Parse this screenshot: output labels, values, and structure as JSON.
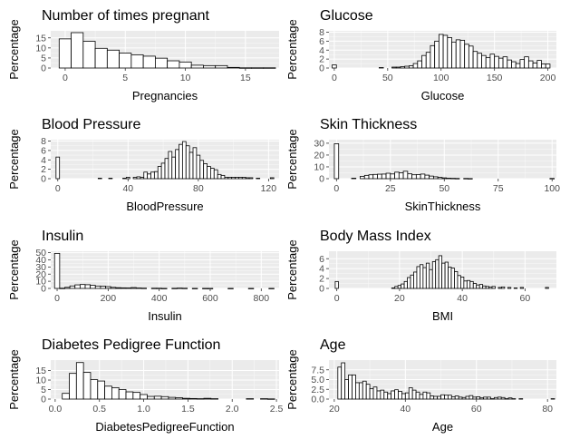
{
  "style": {
    "panel_bg": "#ebebeb",
    "grid_color": "#ffffff",
    "bar_fill": "#ffffff",
    "bar_stroke": "#000000",
    "tick_label_color": "#4d4d4d"
  },
  "chart_data": [
    {
      "type": "bar",
      "title": "Number of times pregnant",
      "xlabel": "Pregnancies",
      "ylabel": "Percentage",
      "xlim": [
        -1.2,
        17.8
      ],
      "ylim": [
        0,
        18.5
      ],
      "xticks": [
        0,
        5,
        10,
        15
      ],
      "xtick_labels": [
        "0",
        "5",
        "10",
        "15"
      ],
      "yticks": [
        0,
        5,
        10,
        15
      ],
      "ytick_labels": [
        "0",
        "5",
        "10",
        "15"
      ],
      "grid": true,
      "bin_width": 1,
      "bins": [
        [
          -0.5,
          14.5
        ],
        [
          0.5,
          17.6
        ],
        [
          1.5,
          13.3
        ],
        [
          2.5,
          9.8
        ],
        [
          3.5,
          8.9
        ],
        [
          4.5,
          7.4
        ],
        [
          5.5,
          6.6
        ],
        [
          6.5,
          5.9
        ],
        [
          7.5,
          4.9
        ],
        [
          8.5,
          3.6
        ],
        [
          9.5,
          3.0
        ],
        [
          10.5,
          1.4
        ],
        [
          11.5,
          1.2
        ],
        [
          12.5,
          1.2
        ],
        [
          13.5,
          0.3
        ],
        [
          14.5,
          0.1
        ],
        [
          15.5,
          0.1
        ],
        [
          16.5,
          0.1
        ]
      ]
    },
    {
      "type": "bar",
      "title": "Glucose",
      "xlabel": "Glucose",
      "ylabel": "Percentage",
      "xlim": [
        -5,
        208
      ],
      "ylim": [
        0,
        8.3
      ],
      "xticks": [
        0,
        50,
        100,
        150,
        200
      ],
      "xtick_labels": [
        "0",
        "50",
        "100",
        "150",
        "200"
      ],
      "yticks": [
        0,
        2,
        4,
        6,
        8
      ],
      "ytick_labels": [
        "0",
        "2",
        "4",
        "6",
        "8"
      ],
      "grid": true,
      "bin_width": 4,
      "bins": [
        [
          -2,
          0.7
        ],
        [
          42,
          0.1
        ],
        [
          54,
          0.2
        ],
        [
          58,
          0.2
        ],
        [
          62,
          0.3
        ],
        [
          66,
          0.4
        ],
        [
          70,
          0.5
        ],
        [
          74,
          1.0
        ],
        [
          78,
          1.6
        ],
        [
          82,
          2.8
        ],
        [
          86,
          3.5
        ],
        [
          90,
          5.0
        ],
        [
          94,
          6.0
        ],
        [
          98,
          7.5
        ],
        [
          102,
          7.3
        ],
        [
          106,
          6.8
        ],
        [
          110,
          5.8
        ],
        [
          114,
          6.3
        ],
        [
          118,
          6.2
        ],
        [
          122,
          5.3
        ],
        [
          126,
          4.9
        ],
        [
          130,
          3.7
        ],
        [
          134,
          3.3
        ],
        [
          138,
          2.8
        ],
        [
          142,
          2.3
        ],
        [
          146,
          3.1
        ],
        [
          150,
          2.6
        ],
        [
          154,
          2.2
        ],
        [
          158,
          2.5
        ],
        [
          162,
          1.8
        ],
        [
          166,
          1.4
        ],
        [
          170,
          1.0
        ],
        [
          174,
          1.9
        ],
        [
          178,
          2.5
        ],
        [
          182,
          1.6
        ],
        [
          186,
          1.1
        ],
        [
          190,
          1.7
        ],
        [
          194,
          0.9
        ],
        [
          198,
          0.9
        ]
      ]
    },
    {
      "type": "bar",
      "title": "Blood Pressure",
      "xlabel": "BloodPressure",
      "ylabel": "Percentage",
      "xlim": [
        -4,
        126
      ],
      "ylim": [
        0,
        8.3
      ],
      "xticks": [
        0,
        40,
        80,
        120
      ],
      "xtick_labels": [
        "0",
        "40",
        "80",
        "120"
      ],
      "yticks": [
        0,
        2,
        4,
        6,
        8
      ],
      "ytick_labels": [
        "0",
        "2",
        "4",
        "6",
        "8"
      ],
      "grid": true,
      "bin_width": 2,
      "bins": [
        [
          -1,
          4.6
        ],
        [
          23,
          0.1
        ],
        [
          29,
          0.1
        ],
        [
          37,
          0.1
        ],
        [
          39,
          0.3
        ],
        [
          43,
          0.3
        ],
        [
          45,
          0.4
        ],
        [
          47,
          0.3
        ],
        [
          49,
          1.4
        ],
        [
          51,
          1.0
        ],
        [
          53,
          1.4
        ],
        [
          55,
          1.5
        ],
        [
          57,
          2.6
        ],
        [
          59,
          3.3
        ],
        [
          61,
          4.3
        ],
        [
          63,
          5.8
        ],
        [
          65,
          4.6
        ],
        [
          67,
          6.2
        ],
        [
          69,
          7.3
        ],
        [
          71,
          7.9
        ],
        [
          73,
          7.0
        ],
        [
          75,
          5.6
        ],
        [
          77,
          6.6
        ],
        [
          79,
          5.0
        ],
        [
          81,
          3.9
        ],
        [
          83,
          3.2
        ],
        [
          85,
          2.6
        ],
        [
          87,
          2.2
        ],
        [
          89,
          1.9
        ],
        [
          91,
          0.9
        ],
        [
          93,
          0.7
        ],
        [
          95,
          0.3
        ],
        [
          97,
          0.3
        ],
        [
          99,
          0.3
        ],
        [
          101,
          0.3
        ],
        [
          103,
          0.3
        ],
        [
          105,
          0.3
        ],
        [
          107,
          0.2
        ],
        [
          109,
          0.2
        ],
        [
          113,
          0.1
        ],
        [
          121,
          0.2
        ]
      ]
    },
    {
      "type": "bar",
      "title": "Skin Thickness",
      "xlabel": "SkinThickness",
      "ylabel": "Percentage",
      "xlim": [
        -3.5,
        102
      ],
      "ylim": [
        0,
        33
      ],
      "xticks": [
        0,
        25,
        50,
        75,
        100
      ],
      "xtick_labels": [
        "0",
        "25",
        "50",
        "75",
        "100"
      ],
      "yticks": [
        0,
        10,
        20,
        30
      ],
      "ytick_labels": [
        "0",
        "10",
        "20",
        "30"
      ],
      "grid": true,
      "bin_width": 2,
      "bins": [
        [
          -1,
          29.6
        ],
        [
          7,
          0.4
        ],
        [
          11,
          2.0
        ],
        [
          13,
          2.8
        ],
        [
          15,
          3.3
        ],
        [
          17,
          3.6
        ],
        [
          19,
          3.8
        ],
        [
          21,
          3.9
        ],
        [
          23,
          4.6
        ],
        [
          25,
          4.0
        ],
        [
          27,
          5.5
        ],
        [
          29,
          5.0
        ],
        [
          31,
          6.3
        ],
        [
          33,
          4.1
        ],
        [
          35,
          3.3
        ],
        [
          37,
          3.5
        ],
        [
          39,
          3.9
        ],
        [
          41,
          3.0
        ],
        [
          43,
          2.2
        ],
        [
          45,
          1.6
        ],
        [
          47,
          1.1
        ],
        [
          49,
          0.7
        ],
        [
          51,
          0.4
        ],
        [
          53,
          0.3
        ],
        [
          55,
          0.2
        ],
        [
          59,
          0.2
        ],
        [
          61,
          0.1
        ],
        [
          99,
          0.2
        ]
      ]
    },
    {
      "type": "bar",
      "title": "Insulin",
      "xlabel": "Insulin",
      "ylabel": "Percentage",
      "xlim": [
        -25,
        870
      ],
      "ylim": [
        0,
        52
      ],
      "xticks": [
        0,
        200,
        400,
        600,
        800
      ],
      "xtick_labels": [
        "0",
        "200",
        "400",
        "600",
        "800"
      ],
      "yticks": [
        0,
        10,
        20,
        30,
        40,
        50
      ],
      "ytick_labels": [
        "0",
        "10",
        "20",
        "30",
        "40",
        "50"
      ],
      "grid": true,
      "bin_width": 20,
      "bins": [
        [
          -10,
          49.0
        ],
        [
          10,
          0.3
        ],
        [
          30,
          1.5
        ],
        [
          50,
          3.5
        ],
        [
          70,
          5.0
        ],
        [
          90,
          5.5
        ],
        [
          110,
          5.2
        ],
        [
          130,
          4.3
        ],
        [
          150,
          3.4
        ],
        [
          170,
          3.2
        ],
        [
          190,
          2.6
        ],
        [
          210,
          1.5
        ],
        [
          230,
          1.0
        ],
        [
          250,
          0.8
        ],
        [
          270,
          0.7
        ],
        [
          290,
          1.2
        ],
        [
          310,
          0.6
        ],
        [
          330,
          0.4
        ],
        [
          370,
          0.3
        ],
        [
          390,
          0.3
        ],
        [
          410,
          0.1
        ],
        [
          450,
          0.2
        ],
        [
          470,
          0.5
        ],
        [
          490,
          0.3
        ],
        [
          530,
          0.1
        ],
        [
          570,
          0.1
        ],
        [
          590,
          0.1
        ],
        [
          670,
          0.1
        ],
        [
          750,
          0.1
        ],
        [
          830,
          0.1
        ]
      ]
    },
    {
      "type": "bar",
      "title": "Body Mass Index",
      "xlabel": "BMI",
      "ylabel": "Percentage",
      "xlim": [
        -2.5,
        70
      ],
      "ylim": [
        0,
        7.5
      ],
      "xticks": [
        0,
        20,
        40,
        60
      ],
      "xtick_labels": [
        "0",
        "20",
        "40",
        "60"
      ],
      "yticks": [
        0,
        2,
        4,
        6
      ],
      "ytick_labels": [
        "0",
        "2",
        "4",
        "6"
      ],
      "grid": true,
      "bin_width": 1,
      "bins": [
        [
          -0.5,
          1.4
        ],
        [
          17.5,
          0.1
        ],
        [
          18.5,
          0.4
        ],
        [
          19.5,
          0.6
        ],
        [
          20.5,
          0.9
        ],
        [
          21.5,
          1.4
        ],
        [
          22.5,
          2.2
        ],
        [
          23.5,
          2.7
        ],
        [
          24.5,
          3.3
        ],
        [
          25.5,
          4.4
        ],
        [
          26.5,
          4.8
        ],
        [
          27.5,
          4.2
        ],
        [
          28.5,
          5.1
        ],
        [
          29.5,
          3.8
        ],
        [
          30.5,
          5.4
        ],
        [
          31.5,
          5.8
        ],
        [
          32.5,
          6.6
        ],
        [
          33.5,
          5.1
        ],
        [
          34.5,
          5.3
        ],
        [
          35.5,
          4.3
        ],
        [
          36.5,
          4.1
        ],
        [
          37.5,
          3.4
        ],
        [
          38.5,
          2.6
        ],
        [
          39.5,
          2.3
        ],
        [
          40.5,
          1.5
        ],
        [
          41.5,
          1.6
        ],
        [
          42.5,
          1.4
        ],
        [
          43.5,
          1.0
        ],
        [
          44.5,
          0.7
        ],
        [
          45.5,
          0.8
        ],
        [
          46.5,
          0.5
        ],
        [
          47.5,
          0.4
        ],
        [
          48.5,
          0.3
        ],
        [
          49.5,
          0.4
        ],
        [
          51.5,
          0.2
        ],
        [
          52.5,
          0.3
        ],
        [
          54.5,
          0.2
        ],
        [
          56.5,
          0.1
        ],
        [
          58.5,
          0.2
        ],
        [
          66.5,
          0.2
        ]
      ]
    },
    {
      "type": "bar",
      "title": "Diabetes Pedigree Function",
      "xlabel": "DiabetesPedigreeFunction",
      "ylabel": "Percentage",
      "xlim": [
        -0.05,
        2.53
      ],
      "ylim": [
        0,
        20.5
      ],
      "xticks": [
        0.0,
        0.5,
        1.0,
        1.5,
        2.0,
        2.5
      ],
      "xtick_labels": [
        "0.0",
        "0.5",
        "1.0",
        "1.5",
        "2.0",
        "2.5"
      ],
      "yticks": [
        0,
        5,
        10,
        15
      ],
      "ytick_labels": [
        "0",
        "5",
        "10",
        "15"
      ],
      "grid": true,
      "bin_width": 0.08,
      "bins": [
        [
          0.08,
          3.0
        ],
        [
          0.16,
          13.5
        ],
        [
          0.24,
          19.2
        ],
        [
          0.32,
          14.0
        ],
        [
          0.4,
          10.2
        ],
        [
          0.48,
          9.5
        ],
        [
          0.56,
          6.8
        ],
        [
          0.64,
          6.0
        ],
        [
          0.72,
          5.0
        ],
        [
          0.8,
          3.8
        ],
        [
          0.88,
          3.5
        ],
        [
          0.96,
          2.4
        ],
        [
          1.04,
          1.4
        ],
        [
          1.12,
          1.5
        ],
        [
          1.2,
          1.3
        ],
        [
          1.28,
          0.9
        ],
        [
          1.36,
          0.7
        ],
        [
          1.44,
          0.4
        ],
        [
          1.52,
          0.3
        ],
        [
          1.6,
          0.2
        ],
        [
          1.68,
          0.4
        ],
        [
          1.76,
          0.2
        ],
        [
          2.16,
          0.2
        ],
        [
          2.32,
          0.2
        ],
        [
          2.4,
          0.1
        ]
      ]
    },
    {
      "type": "bar",
      "title": "Age",
      "xlabel": "Age",
      "ylabel": "Percentage",
      "xlim": [
        18.5,
        82.5
      ],
      "ylim": [
        0,
        10
      ],
      "xticks": [
        20,
        40,
        60,
        80
      ],
      "xtick_labels": [
        "20",
        "40",
        "60",
        "80"
      ],
      "yticks": [
        0,
        2.5,
        5,
        7.5
      ],
      "ytick_labels": [
        "0.0",
        "2.5",
        "5.0",
        "7.5"
      ],
      "grid": true,
      "bin_width": 1,
      "bins": [
        [
          21,
          8.2
        ],
        [
          22,
          9.3
        ],
        [
          23,
          5.0
        ],
        [
          24,
          6.2
        ],
        [
          25,
          6.2
        ],
        [
          26,
          4.2
        ],
        [
          27,
          4.2
        ],
        [
          28,
          4.6
        ],
        [
          29,
          3.8
        ],
        [
          30,
          2.7
        ],
        [
          31,
          3.1
        ],
        [
          32,
          2.1
        ],
        [
          33,
          2.3
        ],
        [
          34,
          1.8
        ],
        [
          35,
          1.4
        ],
        [
          36,
          2.1
        ],
        [
          37,
          2.4
        ],
        [
          38,
          2.0
        ],
        [
          39,
          1.4
        ],
        [
          40,
          1.6
        ],
        [
          41,
          2.9
        ],
        [
          42,
          2.3
        ],
        [
          43,
          1.8
        ],
        [
          44,
          1.2
        ],
        [
          45,
          1.8
        ],
        [
          46,
          1.6
        ],
        [
          47,
          0.8
        ],
        [
          48,
          0.7
        ],
        [
          49,
          0.7
        ],
        [
          50,
          1.1
        ],
        [
          51,
          1.0
        ],
        [
          52,
          1.0
        ],
        [
          53,
          0.6
        ],
        [
          54,
          0.8
        ],
        [
          55,
          0.5
        ],
        [
          56,
          0.4
        ],
        [
          57,
          0.7
        ],
        [
          58,
          0.9
        ],
        [
          59,
          0.5
        ],
        [
          60,
          0.6
        ],
        [
          61,
          0.3
        ],
        [
          62,
          0.5
        ],
        [
          63,
          0.5
        ],
        [
          64,
          0.1
        ],
        [
          65,
          0.4
        ],
        [
          66,
          0.5
        ],
        [
          67,
          0.4
        ],
        [
          68,
          0.1
        ],
        [
          69,
          0.3
        ],
        [
          70,
          0.1
        ],
        [
          72,
          0.1
        ],
        [
          81,
          0.1
        ]
      ]
    }
  ]
}
